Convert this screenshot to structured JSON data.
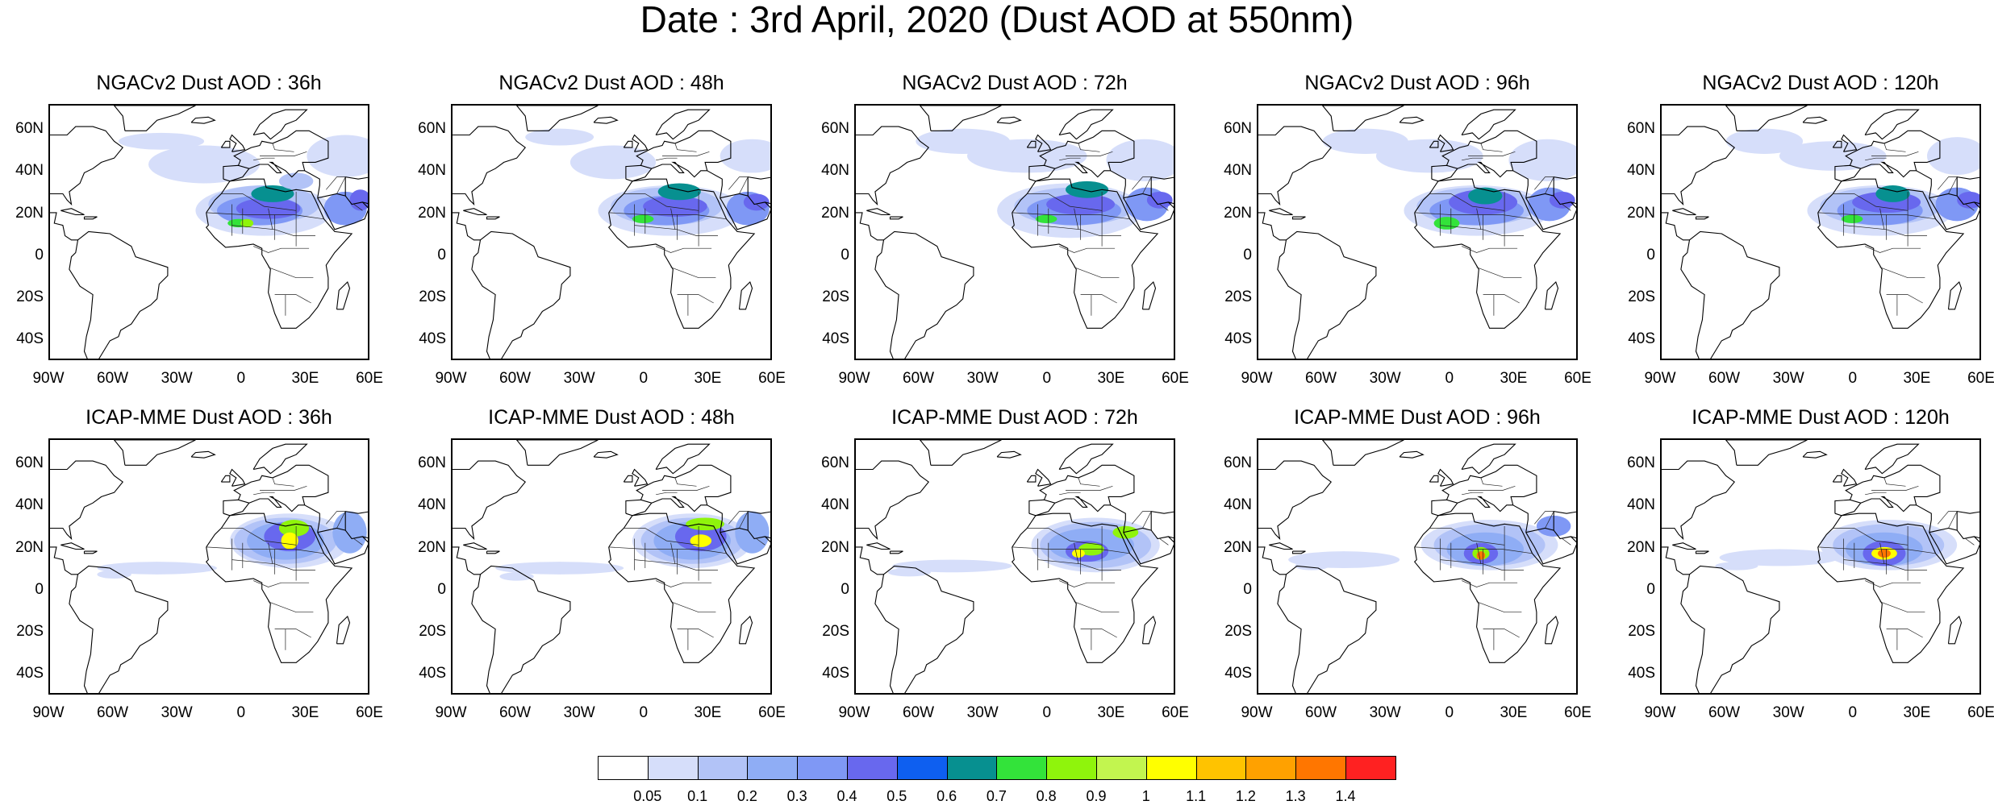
{
  "title": "Date : 3rd April, 2020 (Dust AOD at 550nm)",
  "panels": [
    {
      "title": "NGACv2 Dust AOD : 36h",
      "model": "NGACv2",
      "lead": "36h"
    },
    {
      "title": "NGACv2 Dust AOD : 48h",
      "model": "NGACv2",
      "lead": "48h"
    },
    {
      "title": "NGACv2 Dust AOD : 72h",
      "model": "NGACv2",
      "lead": "72h"
    },
    {
      "title": "NGACv2 Dust AOD : 96h",
      "model": "NGACv2",
      "lead": "96h"
    },
    {
      "title": "NGACv2 Dust AOD : 120h",
      "model": "NGACv2",
      "lead": "120h"
    },
    {
      "title": "ICAP-MME Dust AOD : 36h",
      "model": "ICAP-MME",
      "lead": "36h"
    },
    {
      "title": "ICAP-MME Dust AOD : 48h",
      "model": "ICAP-MME",
      "lead": "48h"
    },
    {
      "title": "ICAP-MME Dust AOD : 72h",
      "model": "ICAP-MME",
      "lead": "72h"
    },
    {
      "title": "ICAP-MME Dust AOD : 96h",
      "model": "ICAP-MME",
      "lead": "96h"
    },
    {
      "title": "ICAP-MME Dust AOD : 120h",
      "model": "ICAP-MME",
      "lead": "120h"
    }
  ],
  "lat_labels": [
    "60N",
    "40N",
    "20N",
    "0",
    "20S",
    "40S"
  ],
  "lon_labels": [
    "90W",
    "60W",
    "30W",
    "0",
    "30E",
    "60E"
  ],
  "colorbar": {
    "labels": [
      "0.05",
      "0.1",
      "0.2",
      "0.3",
      "0.4",
      "0.5",
      "0.6",
      "0.7",
      "0.8",
      "0.9",
      "1",
      "1.1",
      "1.2",
      "1.3",
      "1.4"
    ],
    "colors": [
      "#ffffff",
      "#d6defa",
      "#b2c3f7",
      "#8fadf5",
      "#7f98f5",
      "#6868ee",
      "#0e5ff0",
      "#079090",
      "#33e33a",
      "#8ff40c",
      "#c2f54f",
      "#ffff00",
      "#ffc300",
      "#ffa100",
      "#ff7600",
      "#ff2121"
    ]
  }
}
